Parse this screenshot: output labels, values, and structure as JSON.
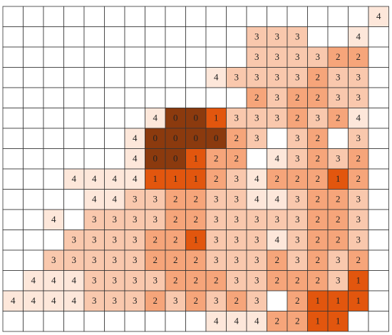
{
  "grid": {
    "colors": [
      "#8b3a0e",
      "#e2560e",
      "#f6a57a",
      "#f9c8ad",
      "#fde7da"
    ],
    "rows": [
      [
        null,
        null,
        null,
        null,
        null,
        null,
        null,
        null,
        null,
        null,
        null,
        null,
        null,
        null,
        null,
        null,
        null,
        null,
        4
      ],
      [
        null,
        null,
        null,
        null,
        null,
        null,
        null,
        null,
        null,
        null,
        null,
        null,
        3,
        3,
        3,
        null,
        null,
        4,
        null
      ],
      [
        null,
        null,
        null,
        null,
        null,
        null,
        null,
        null,
        null,
        null,
        null,
        null,
        3,
        3,
        3,
        3,
        2,
        2,
        null
      ],
      [
        null,
        null,
        null,
        null,
        null,
        null,
        null,
        null,
        null,
        null,
        4,
        3,
        3,
        3,
        3,
        2,
        3,
        3,
        null
      ],
      [
        null,
        null,
        null,
        null,
        null,
        null,
        null,
        null,
        null,
        null,
        null,
        null,
        2,
        3,
        2,
        2,
        3,
        3,
        null
      ],
      [
        null,
        null,
        null,
        null,
        null,
        null,
        null,
        4,
        0,
        0,
        1,
        3,
        3,
        3,
        2,
        3,
        2,
        4,
        null
      ],
      [
        null,
        null,
        null,
        null,
        null,
        null,
        4,
        0,
        0,
        0,
        0,
        2,
        3,
        null,
        3,
        2,
        null,
        3,
        null
      ],
      [
        null,
        null,
        null,
        null,
        null,
        null,
        4,
        0,
        0,
        1,
        2,
        2,
        null,
        4,
        3,
        2,
        3,
        2,
        null
      ],
      [
        null,
        null,
        null,
        4,
        4,
        4,
        4,
        1,
        1,
        1,
        2,
        3,
        4,
        2,
        2,
        2,
        1,
        2,
        null
      ],
      [
        null,
        null,
        null,
        null,
        4,
        4,
        3,
        3,
        2,
        2,
        3,
        3,
        4,
        4,
        3,
        2,
        2,
        3,
        null
      ],
      [
        null,
        null,
        4,
        null,
        3,
        3,
        3,
        3,
        2,
        2,
        3,
        3,
        3,
        3,
        3,
        2,
        2,
        3,
        null
      ],
      [
        null,
        null,
        null,
        3,
        3,
        3,
        3,
        2,
        2,
        1,
        3,
        3,
        3,
        4,
        3,
        2,
        2,
        3,
        null
      ],
      [
        null,
        null,
        3,
        3,
        3,
        3,
        3,
        2,
        2,
        2,
        3,
        3,
        3,
        2,
        3,
        2,
        3,
        2,
        null
      ],
      [
        null,
        4,
        4,
        4,
        3,
        3,
        3,
        3,
        2,
        2,
        2,
        3,
        3,
        2,
        2,
        2,
        3,
        1,
        null
      ],
      [
        4,
        4,
        4,
        4,
        3,
        3,
        3,
        2,
        3,
        2,
        3,
        2,
        3,
        null,
        2,
        1,
        1,
        1,
        null
      ],
      [
        null,
        null,
        null,
        null,
        null,
        null,
        null,
        null,
        null,
        null,
        4,
        4,
        4,
        2,
        2,
        1,
        1,
        null,
        null
      ]
    ]
  }
}
